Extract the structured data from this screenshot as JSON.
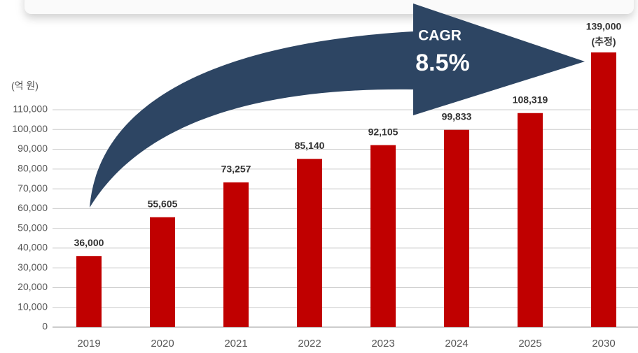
{
  "chart_data": {
    "type": "bar",
    "unit_label": "(억 원)",
    "categories": [
      "2019",
      "2020",
      "2021",
      "2022",
      "2023",
      "2024",
      "2025",
      "2030"
    ],
    "values": [
      36000,
      55605,
      73257,
      85140,
      92105,
      99833,
      108319,
      139000
    ],
    "value_labels": [
      "36,000",
      "55,605",
      "73,257",
      "85,140",
      "92,105",
      "99,833",
      "108,319",
      "139,000"
    ],
    "estimate_note": "(추정)",
    "color": "#c00000",
    "ylim": [
      0,
      110000
    ],
    "yticks": [
      0,
      {
        "value": 10000,
        "label": "10,000"
      },
      {
        "value": 20000,
        "label": "20,000"
      },
      {
        "value": 30000,
        "label": "30,000"
      },
      {
        "value": 40000,
        "label": "40,000"
      },
      {
        "value": 50000,
        "label": "50,000"
      },
      {
        "value": 60000,
        "label": "60,000"
      },
      {
        "value": 70000,
        "label": "70,000"
      },
      {
        "value": 80000,
        "label": "80,000"
      },
      {
        "value": 90000,
        "label": "90,000"
      },
      {
        "value": 100000,
        "label": "100,000"
      },
      {
        "value": 110000,
        "label": "110,000"
      }
    ],
    "grid": true,
    "annotation": {
      "title": "CAGR",
      "value": "8.5%"
    }
  }
}
